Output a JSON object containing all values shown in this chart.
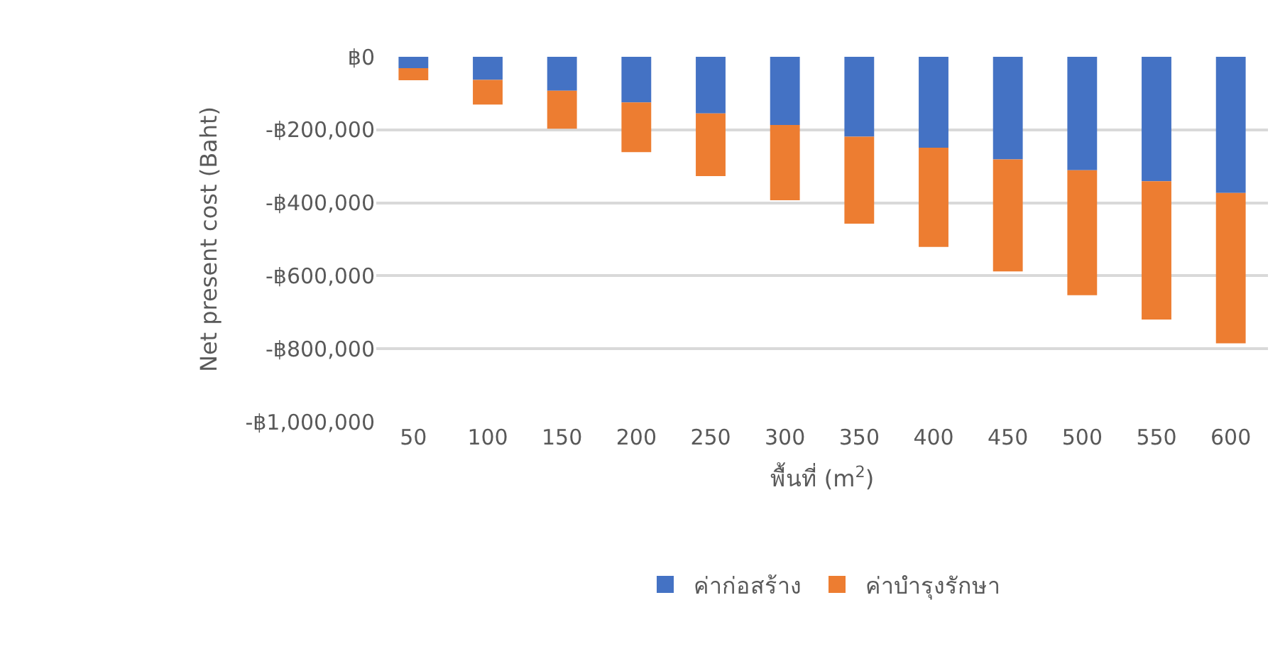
{
  "chart_data": {
    "type": "bar",
    "stacked": true,
    "xlabel": "พื้นที่ (m$^{2}$)",
    "ylabel": "Net present cost (Baht)",
    "categories": [
      "50",
      "100",
      "150",
      "200",
      "250",
      "300",
      "350",
      "400",
      "450",
      "500",
      "550",
      "600"
    ],
    "series": [
      {
        "name": "ค่าก่อสร้าง",
        "color": "#4472c4",
        "values": [
          -31000,
          -63000,
          -93000,
          -125000,
          -155000,
          -187000,
          -219000,
          -249000,
          -281000,
          -311000,
          -341000,
          -373000
        ]
      },
      {
        "name": "ค่าบำรุงรักษา",
        "color": "#ed7d31",
        "values": [
          -33000,
          -68000,
          -104000,
          -136000,
          -172000,
          -206000,
          -238000,
          -272000,
          -307000,
          -342000,
          -379000,
          -412000
        ]
      }
    ],
    "ylim": [
      -1000000,
      0
    ],
    "yticks": [
      {
        "value": 0,
        "label": "฿0"
      },
      {
        "value": -200000,
        "label": "-฿200,000"
      },
      {
        "value": -400000,
        "label": "-฿400,000"
      },
      {
        "value": -600000,
        "label": "-฿600,000"
      },
      {
        "value": -800000,
        "label": "-฿800,000"
      },
      {
        "value": -1000000,
        "label": "-฿1,000,000"
      }
    ],
    "grid": "y",
    "legend": "bottom"
  }
}
